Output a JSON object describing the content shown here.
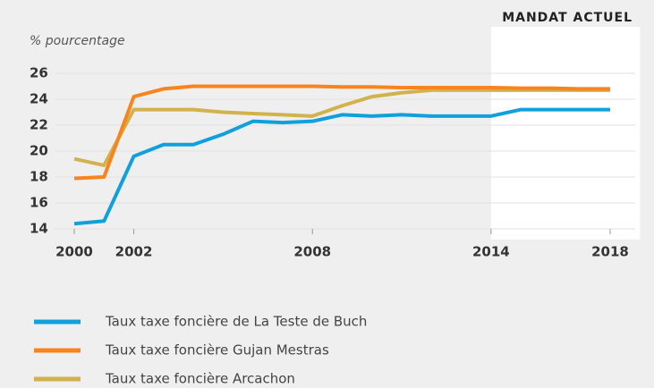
{
  "chart_data": {
    "type": "line",
    "annotation": "MANDAT ACTUEL",
    "highlight_range": [
      2014,
      2019
    ],
    "y_label": "% pourcentage",
    "x": [
      2000,
      2001,
      2002,
      2003,
      2004,
      2005,
      2006,
      2007,
      2008,
      2009,
      2010,
      2011,
      2012,
      2013,
      2014,
      2015,
      2016,
      2017,
      2018
    ],
    "xlim": [
      2000,
      2018
    ],
    "xticks": [
      2000,
      2002,
      2008,
      2014,
      2018
    ],
    "ylim": [
      14,
      26
    ],
    "yticks": [
      14,
      16,
      18,
      20,
      22,
      24,
      26
    ],
    "grid": true,
    "series": [
      {
        "name": "Taux taxe foncière de La Teste de Buch",
        "color": "#12a0dc",
        "values": [
          14.4,
          14.6,
          19.6,
          20.5,
          20.5,
          21.3,
          22.3,
          22.2,
          22.3,
          22.8,
          22.7,
          22.8,
          22.7,
          22.7,
          22.7,
          23.2,
          23.2,
          23.2,
          23.2
        ]
      },
      {
        "name": "Taux taxe foncière Gujan Mestras",
        "color": "#f7841f",
        "values": [
          17.9,
          18.0,
          24.2,
          24.8,
          25.0,
          25.0,
          25.0,
          25.0,
          25.0,
          24.95,
          24.95,
          24.9,
          24.9,
          24.9,
          24.9,
          24.85,
          24.85,
          24.8,
          24.8
        ]
      },
      {
        "name": "Taux taxe foncière Arcachon",
        "color": "#d2b24c",
        "values": [
          19.4,
          18.9,
          23.2,
          23.2,
          23.2,
          23.0,
          22.9,
          22.8,
          22.7,
          23.5,
          24.2,
          24.5,
          24.7,
          24.7,
          24.7,
          24.7,
          24.7,
          24.7,
          24.7
        ]
      }
    ]
  }
}
